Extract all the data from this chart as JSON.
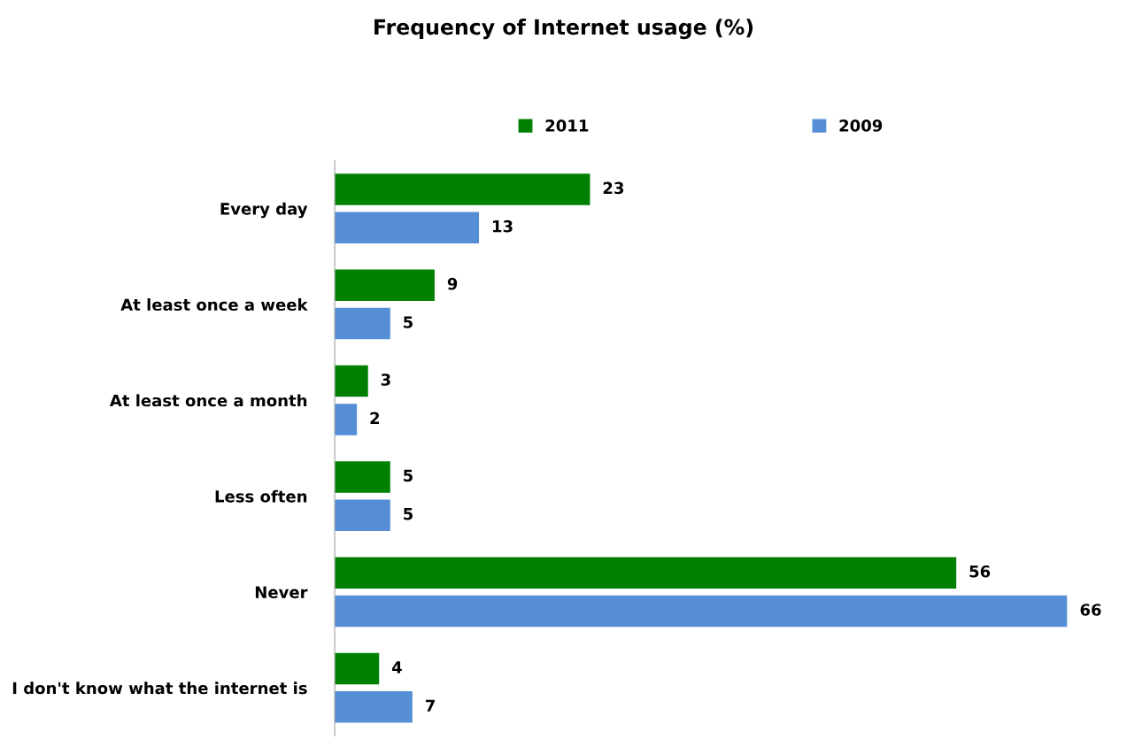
{
  "chart_data": {
    "type": "bar",
    "orientation": "horizontal",
    "title": "Frequency of Internet usage (%)",
    "categories": [
      "Every day",
      "At least once a week",
      "At least once a month",
      "Less often",
      "Never",
      "I don't know what the internet is"
    ],
    "series": [
      {
        "name": "2011",
        "color": "#008000",
        "values": [
          23,
          9,
          3,
          5,
          56,
          4
        ]
      },
      {
        "name": "2009",
        "color": "#558ed5",
        "values": [
          13,
          5,
          2,
          5,
          66,
          7
        ]
      }
    ],
    "data_labels": true,
    "legend": "top",
    "grid": false,
    "tick_labels": "y"
  }
}
